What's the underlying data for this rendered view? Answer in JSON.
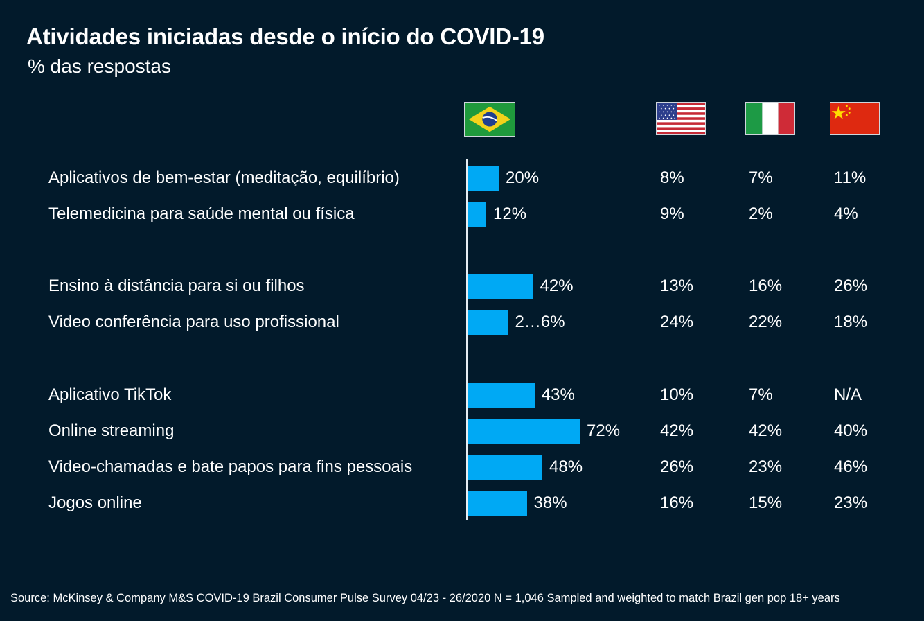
{
  "title": "Atividades iniciadas desde o início do COVID-19",
  "subtitle": "% das respostas",
  "countries": [
    {
      "name": "brazil",
      "icon": "brazil-flag-icon"
    },
    {
      "name": "usa",
      "icon": "usa-flag-icon"
    },
    {
      "name": "italy",
      "icon": "italy-flag-icon"
    },
    {
      "name": "china",
      "icon": "china-flag-icon"
    }
  ],
  "colors": {
    "background": "#021a2b",
    "bar": "#00a9f4",
    "text": "#ffffff"
  },
  "chart_data": {
    "type": "bar",
    "orientation": "horizontal",
    "categories": [
      "Aplicativos de bem-estar (meditação, equilíbrio)",
      "Telemedicina para saúde mental ou física",
      "Ensino à distância para si ou filhos",
      "Video conferência para uso profissional",
      "Aplicativo TikTok",
      "Online streaming",
      "Video-chamadas e bate papos para fins pessoais",
      "Jogos online"
    ],
    "values": [
      20,
      12,
      42,
      26,
      43,
      72,
      48,
      38
    ],
    "value_labels": [
      "20%",
      "12%",
      "42%",
      "2…6%",
      "43%",
      "72%",
      "48%",
      "38%"
    ],
    "value_labels_clean": [
      "20%",
      "12%",
      "42%",
      "26%",
      "43%",
      "72%",
      "48%",
      "38%"
    ],
    "table_columns": [
      {
        "country": "usa",
        "values": [
          "8%",
          "9%",
          "13%",
          "24%",
          "10%",
          "42%",
          "26%",
          "16%"
        ]
      },
      {
        "country": "italy",
        "values": [
          "7%",
          "2%",
          "16%",
          "22%",
          "7%",
          "42%",
          "23%",
          "15%"
        ]
      },
      {
        "country": "china",
        "values": [
          "11%",
          "4%",
          "26%",
          "18%",
          "N/A",
          "40%",
          "46%",
          "23%"
        ]
      }
    ],
    "unit": "%"
  },
  "source": "Source: McKinsey & Company M&S COVID-19 Brazil Consumer Pulse Survey 04/23 - 26/2020 N = 1,046 Sampled and weighted to match Brazil gen pop 18+ years"
}
